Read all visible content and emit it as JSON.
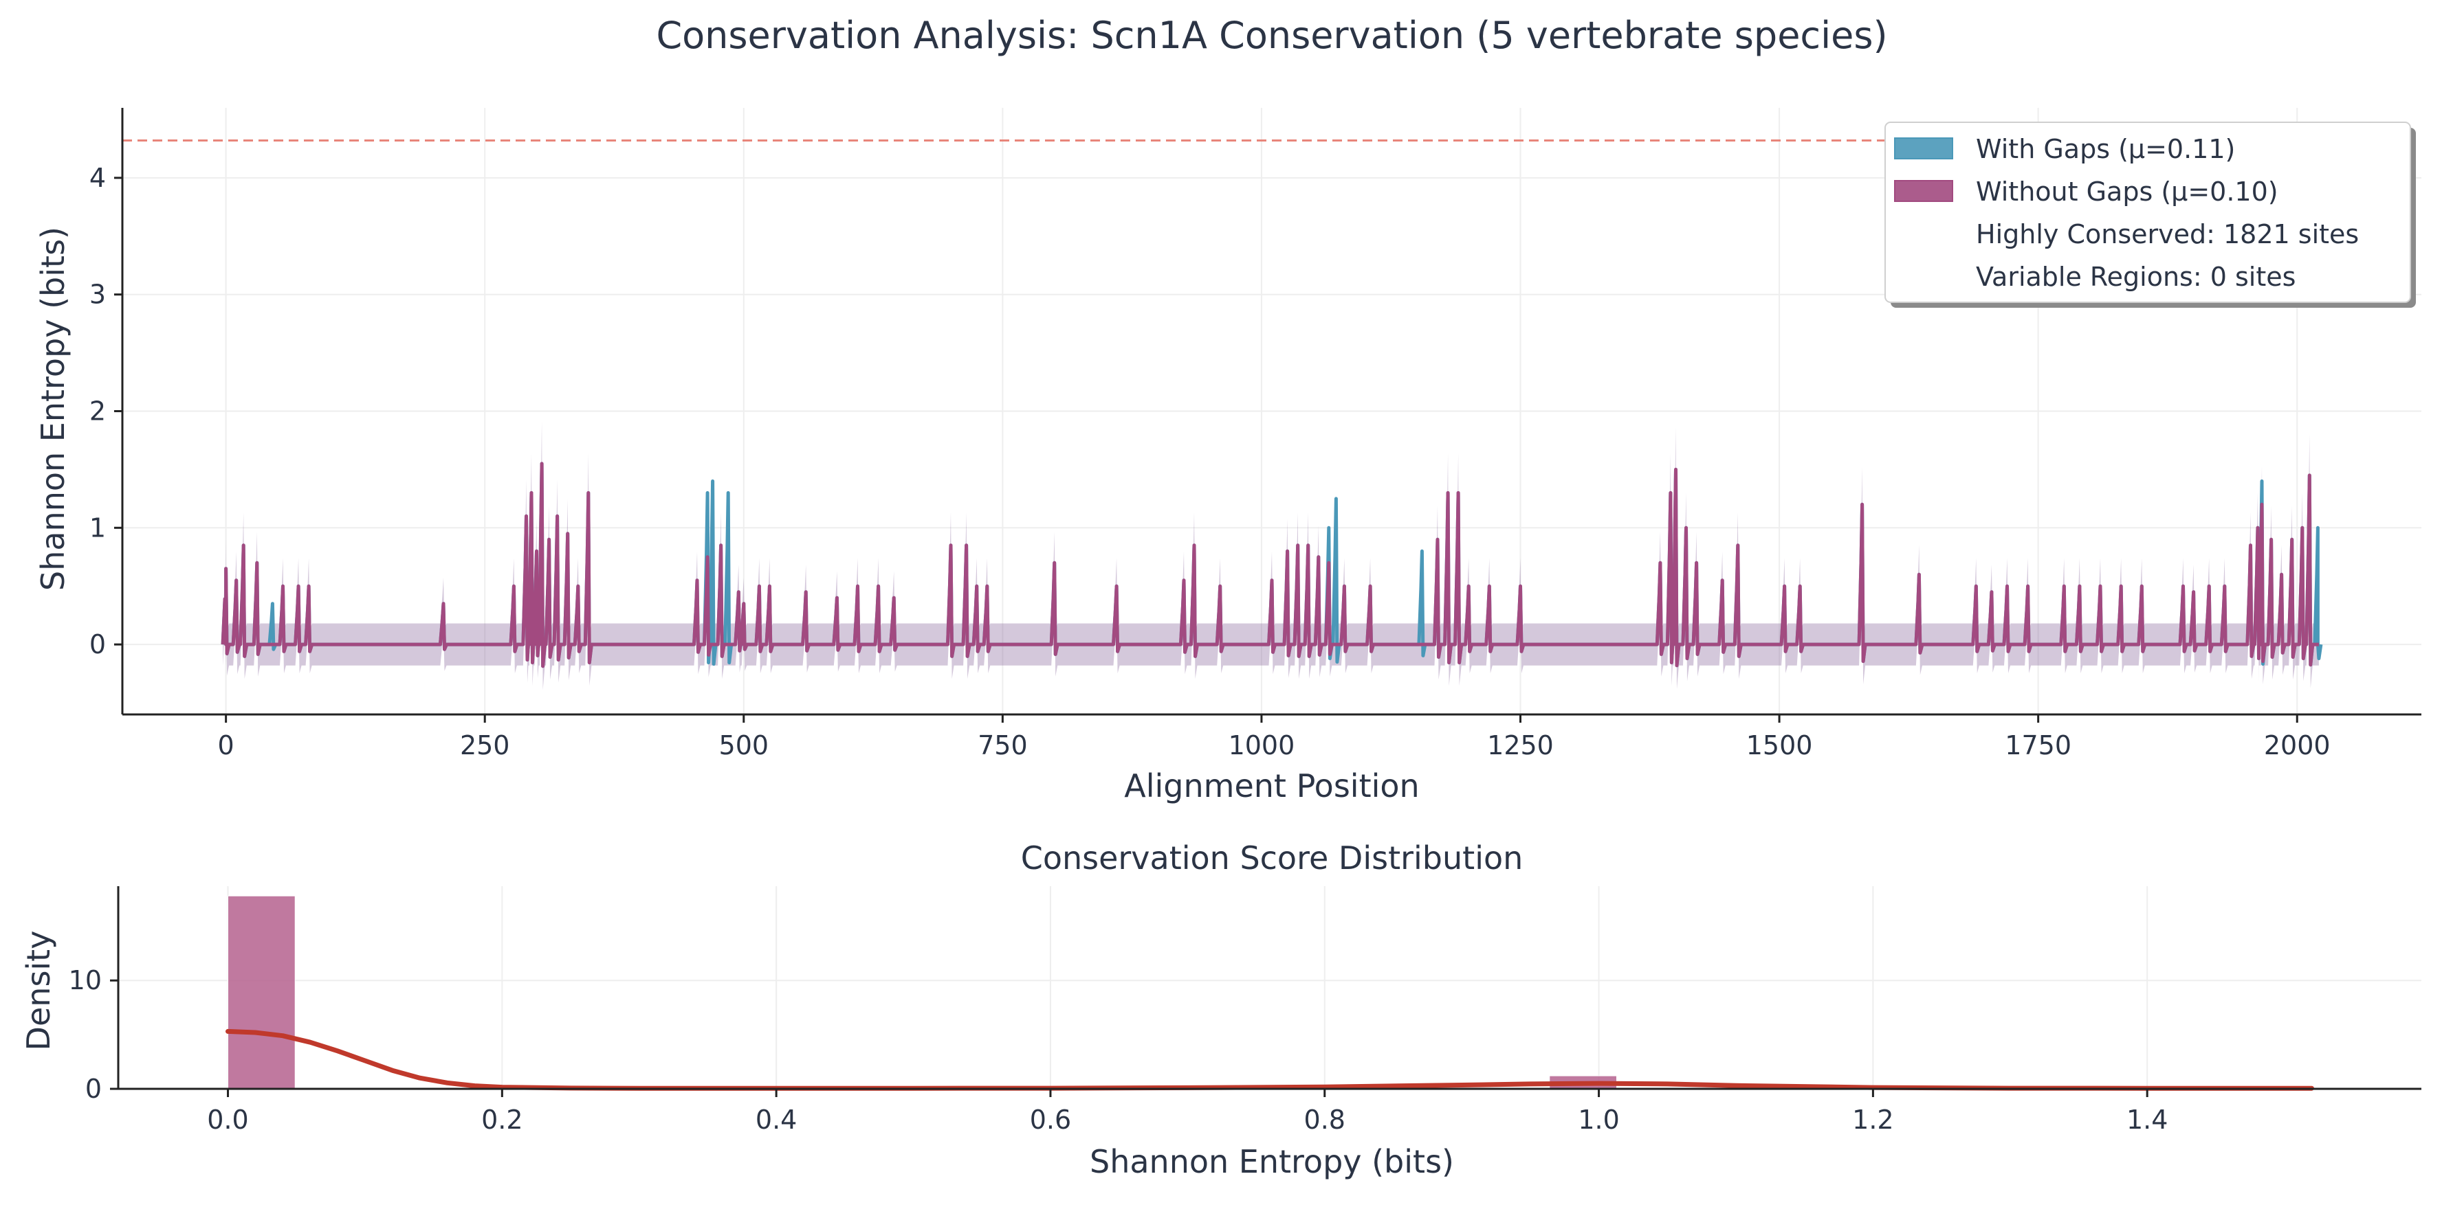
{
  "colors": {
    "with_gaps": "#4a98b8",
    "without_gaps": "#a24a80",
    "band": "#8e6fa0",
    "kde": "#c0392b",
    "threshold": "#e8857a",
    "hist": "#b5618e",
    "text": "#2b3445",
    "grid": "#eeeeee"
  },
  "chart_data": [
    {
      "type": "line",
      "title": "Conservation Analysis: Scn1A Conservation (5 vertebrate species)",
      "xlabel": "Alignment Position",
      "ylabel": "Shannon Entropy (bits)",
      "xlim": [
        -100,
        2120
      ],
      "ylim": [
        -0.6,
        4.6
      ],
      "xticks": [
        0,
        250,
        500,
        750,
        1000,
        1250,
        1500,
        1750,
        2000
      ],
      "yticks": [
        0,
        1,
        2,
        3,
        4
      ],
      "grid": true,
      "threshold_line": 4.32,
      "legend_position": "top-right",
      "legend": [
        {
          "label": "With Gaps (μ=0.11)",
          "swatch": "with_gaps"
        },
        {
          "label": "Without Gaps (μ=0.10)",
          "swatch": "without_gaps"
        },
        {
          "label": "Highly Conserved: 1821 sites",
          "swatch": "none"
        },
        {
          "label": "Variable Regions: 0 sites",
          "swatch": "none"
        }
      ],
      "series": [
        {
          "name": "With Gaps (μ=0.11)",
          "color": "with_gaps",
          "peaks": [
            [
              0,
              0.65
            ],
            [
              10,
              0.55
            ],
            [
              17,
              0.85
            ],
            [
              30,
              0.7
            ],
            [
              45,
              0.35
            ],
            [
              55,
              0.5
            ],
            [
              70,
              0.5
            ],
            [
              80,
              0.5
            ],
            [
              210,
              0.35
            ],
            [
              278,
              0.5
            ],
            [
              290,
              1.1
            ],
            [
              295,
              1.3
            ],
            [
              300,
              0.8
            ],
            [
              305,
              1.55
            ],
            [
              312,
              0.9
            ],
            [
              320,
              1.1
            ],
            [
              330,
              0.95
            ],
            [
              340,
              0.5
            ],
            [
              350,
              1.3
            ],
            [
              455,
              0.55
            ],
            [
              465,
              1.3
            ],
            [
              470,
              1.4
            ],
            [
              478,
              0.85
            ],
            [
              485,
              1.3
            ],
            [
              495,
              0.45
            ],
            [
              500,
              0.35
            ],
            [
              515,
              0.5
            ],
            [
              525,
              0.5
            ],
            [
              560,
              0.45
            ],
            [
              590,
              0.4
            ],
            [
              610,
              0.5
            ],
            [
              630,
              0.5
            ],
            [
              645,
              0.4
            ],
            [
              700,
              0.85
            ],
            [
              715,
              0.85
            ],
            [
              725,
              0.5
            ],
            [
              735,
              0.5
            ],
            [
              800,
              0.7
            ],
            [
              860,
              0.5
            ],
            [
              925,
              0.55
            ],
            [
              935,
              0.85
            ],
            [
              960,
              0.5
            ],
            [
              1010,
              0.55
            ],
            [
              1025,
              0.8
            ],
            [
              1035,
              0.85
            ],
            [
              1045,
              0.85
            ],
            [
              1055,
              0.75
            ],
            [
              1065,
              1.0
            ],
            [
              1072,
              1.25
            ],
            [
              1080,
              0.5
            ],
            [
              1105,
              0.5
            ],
            [
              1155,
              0.8
            ],
            [
              1170,
              0.9
            ],
            [
              1180,
              1.3
            ],
            [
              1190,
              1.3
            ],
            [
              1200,
              0.5
            ],
            [
              1220,
              0.5
            ],
            [
              1250,
              0.5
            ],
            [
              1385,
              0.7
            ],
            [
              1395,
              1.3
            ],
            [
              1400,
              1.5
            ],
            [
              1410,
              1.0
            ],
            [
              1420,
              0.7
            ],
            [
              1445,
              0.55
            ],
            [
              1460,
              0.85
            ],
            [
              1505,
              0.5
            ],
            [
              1520,
              0.5
            ],
            [
              1580,
              1.2
            ],
            [
              1635,
              0.6
            ],
            [
              1690,
              0.5
            ],
            [
              1705,
              0.45
            ],
            [
              1720,
              0.5
            ],
            [
              1740,
              0.5
            ],
            [
              1775,
              0.5
            ],
            [
              1790,
              0.5
            ],
            [
              1810,
              0.5
            ],
            [
              1830,
              0.5
            ],
            [
              1850,
              0.5
            ],
            [
              1890,
              0.5
            ],
            [
              1900,
              0.45
            ],
            [
              1915,
              0.5
            ],
            [
              1930,
              0.5
            ],
            [
              1955,
              0.85
            ],
            [
              1962,
              1.0
            ],
            [
              1966,
              1.4
            ],
            [
              1975,
              0.9
            ],
            [
              1985,
              0.6
            ],
            [
              1995,
              0.9
            ],
            [
              2005,
              1.0
            ],
            [
              2012,
              1.45
            ],
            [
              2020,
              1.0
            ]
          ]
        },
        {
          "name": "Without Gaps (μ=0.10)",
          "color": "without_gaps",
          "peaks": [
            [
              0,
              0.65
            ],
            [
              10,
              0.55
            ],
            [
              17,
              0.85
            ],
            [
              30,
              0.7
            ],
            [
              55,
              0.5
            ],
            [
              70,
              0.5
            ],
            [
              80,
              0.5
            ],
            [
              210,
              0.35
            ],
            [
              278,
              0.5
            ],
            [
              290,
              1.1
            ],
            [
              295,
              1.3
            ],
            [
              300,
              0.8
            ],
            [
              305,
              1.55
            ],
            [
              312,
              0.9
            ],
            [
              320,
              1.1
            ],
            [
              330,
              0.95
            ],
            [
              340,
              0.5
            ],
            [
              350,
              1.3
            ],
            [
              455,
              0.55
            ],
            [
              465,
              0.75
            ],
            [
              478,
              0.85
            ],
            [
              495,
              0.45
            ],
            [
              500,
              0.35
            ],
            [
              515,
              0.5
            ],
            [
              525,
              0.5
            ],
            [
              560,
              0.45
            ],
            [
              590,
              0.4
            ],
            [
              610,
              0.5
            ],
            [
              630,
              0.5
            ],
            [
              645,
              0.4
            ],
            [
              700,
              0.85
            ],
            [
              715,
              0.85
            ],
            [
              725,
              0.5
            ],
            [
              735,
              0.5
            ],
            [
              800,
              0.7
            ],
            [
              860,
              0.5
            ],
            [
              925,
              0.55
            ],
            [
              935,
              0.85
            ],
            [
              960,
              0.5
            ],
            [
              1010,
              0.55
            ],
            [
              1025,
              0.8
            ],
            [
              1035,
              0.85
            ],
            [
              1045,
              0.85
            ],
            [
              1055,
              0.75
            ],
            [
              1065,
              0.7
            ],
            [
              1080,
              0.5
            ],
            [
              1105,
              0.5
            ],
            [
              1170,
              0.9
            ],
            [
              1180,
              1.3
            ],
            [
              1190,
              1.3
            ],
            [
              1200,
              0.5
            ],
            [
              1220,
              0.5
            ],
            [
              1250,
              0.5
            ],
            [
              1385,
              0.7
            ],
            [
              1395,
              1.3
            ],
            [
              1400,
              1.5
            ],
            [
              1410,
              1.0
            ],
            [
              1420,
              0.7
            ],
            [
              1445,
              0.55
            ],
            [
              1460,
              0.85
            ],
            [
              1505,
              0.5
            ],
            [
              1520,
              0.5
            ],
            [
              1580,
              1.2
            ],
            [
              1635,
              0.6
            ],
            [
              1690,
              0.5
            ],
            [
              1705,
              0.45
            ],
            [
              1720,
              0.5
            ],
            [
              1740,
              0.5
            ],
            [
              1775,
              0.5
            ],
            [
              1790,
              0.5
            ],
            [
              1810,
              0.5
            ],
            [
              1830,
              0.5
            ],
            [
              1850,
              0.5
            ],
            [
              1890,
              0.5
            ],
            [
              1900,
              0.45
            ],
            [
              1915,
              0.5
            ],
            [
              1930,
              0.5
            ],
            [
              1955,
              0.85
            ],
            [
              1962,
              1.0
            ],
            [
              1966,
              1.2
            ],
            [
              1975,
              0.9
            ],
            [
              1985,
              0.6
            ],
            [
              1995,
              0.9
            ],
            [
              2005,
              1.0
            ],
            [
              2012,
              1.45
            ],
            [
              2018,
              0.0
            ]
          ]
        }
      ]
    },
    {
      "type": "bar",
      "title": "Conservation Score Distribution",
      "xlabel": "Shannon Entropy (bits)",
      "ylabel": "Density",
      "xlim": [
        -0.08,
        1.6
      ],
      "ylim": [
        0,
        18.7
      ],
      "xticks": [
        0.0,
        0.2,
        0.4,
        0.6,
        0.8,
        1.0,
        1.2,
        1.4
      ],
      "yticks": [
        0,
        10
      ],
      "grid": true,
      "bins": [
        {
          "x0": 0.0,
          "x1": 0.049,
          "density": 17.8
        },
        {
          "x0": 0.964,
          "x1": 1.013,
          "density": 1.2
        }
      ],
      "kde": [
        [
          0.0,
          5.3
        ],
        [
          0.02,
          5.2
        ],
        [
          0.04,
          4.9
        ],
        [
          0.06,
          4.3
        ],
        [
          0.08,
          3.5
        ],
        [
          0.1,
          2.6
        ],
        [
          0.12,
          1.7
        ],
        [
          0.14,
          1.0
        ],
        [
          0.16,
          0.55
        ],
        [
          0.18,
          0.28
        ],
        [
          0.2,
          0.15
        ],
        [
          0.25,
          0.07
        ],
        [
          0.3,
          0.05
        ],
        [
          0.4,
          0.05
        ],
        [
          0.5,
          0.05
        ],
        [
          0.6,
          0.06
        ],
        [
          0.7,
          0.1
        ],
        [
          0.8,
          0.18
        ],
        [
          0.9,
          0.35
        ],
        [
          0.95,
          0.45
        ],
        [
          1.0,
          0.5
        ],
        [
          1.05,
          0.45
        ],
        [
          1.1,
          0.3
        ],
        [
          1.2,
          0.12
        ],
        [
          1.3,
          0.06
        ],
        [
          1.4,
          0.05
        ],
        [
          1.52,
          0.05
        ]
      ]
    }
  ]
}
